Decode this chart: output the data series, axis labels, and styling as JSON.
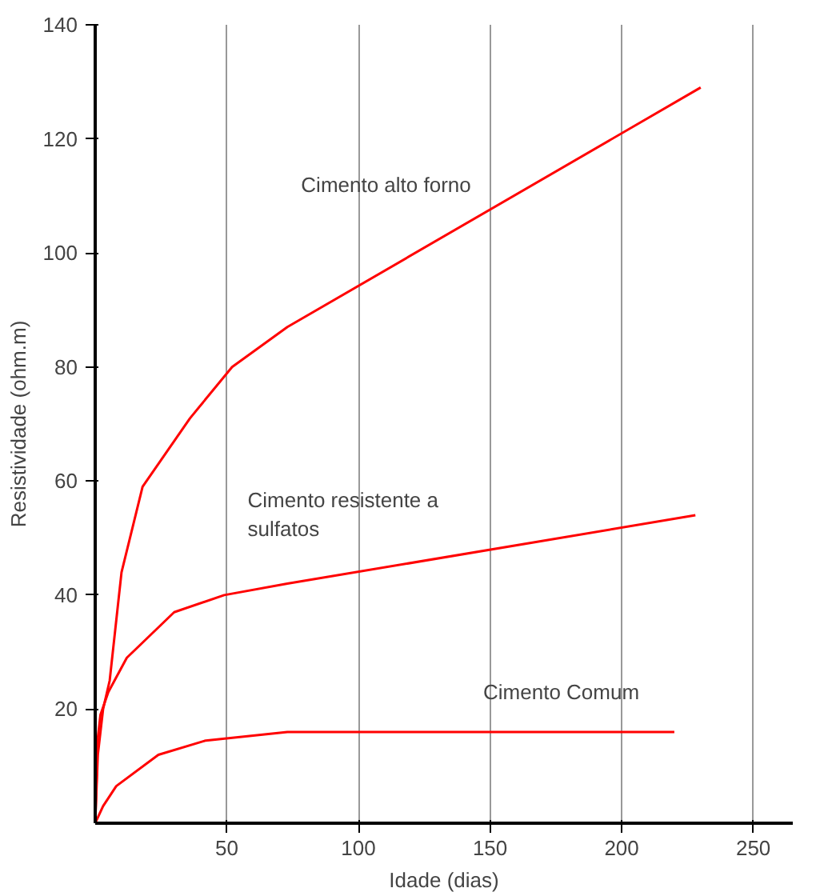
{
  "chart_data": {
    "type": "line",
    "xlabel": "Idade (dias)",
    "ylabel": "Resistividade (ohm.m)",
    "xlim": [
      0,
      265
    ],
    "ylim": [
      0,
      140
    ],
    "xticks": [
      50,
      100,
      150,
      200,
      250
    ],
    "yticks": [
      20,
      40,
      60,
      80,
      100,
      120,
      140
    ],
    "grid": "x",
    "marker": "none",
    "line_style": "solid",
    "series": [
      {
        "name": "Cimento alto forno",
        "color": "#ff0000",
        "x": [
          0,
          1,
          3,
          5.5,
          10,
          18,
          36,
          52,
          73,
          230
        ],
        "values": [
          0,
          12,
          20,
          25,
          44,
          59,
          71,
          80,
          87,
          129
        ]
      },
      {
        "name": "Cimento resistente a\nsulfatos",
        "color": "#ff0000",
        "x": [
          0,
          1,
          2,
          5,
          12,
          30,
          49,
          73,
          228
        ],
        "values": [
          0,
          15,
          19,
          23,
          29,
          37,
          40,
          42,
          54
        ]
      },
      {
        "name": "Cimento Comum",
        "color": "#ff0000",
        "x": [
          0,
          3,
          8,
          24,
          42,
          73,
          104,
          220
        ],
        "values": [
          0,
          3,
          6.5,
          12,
          14.5,
          16,
          16,
          16
        ]
      }
    ]
  }
}
